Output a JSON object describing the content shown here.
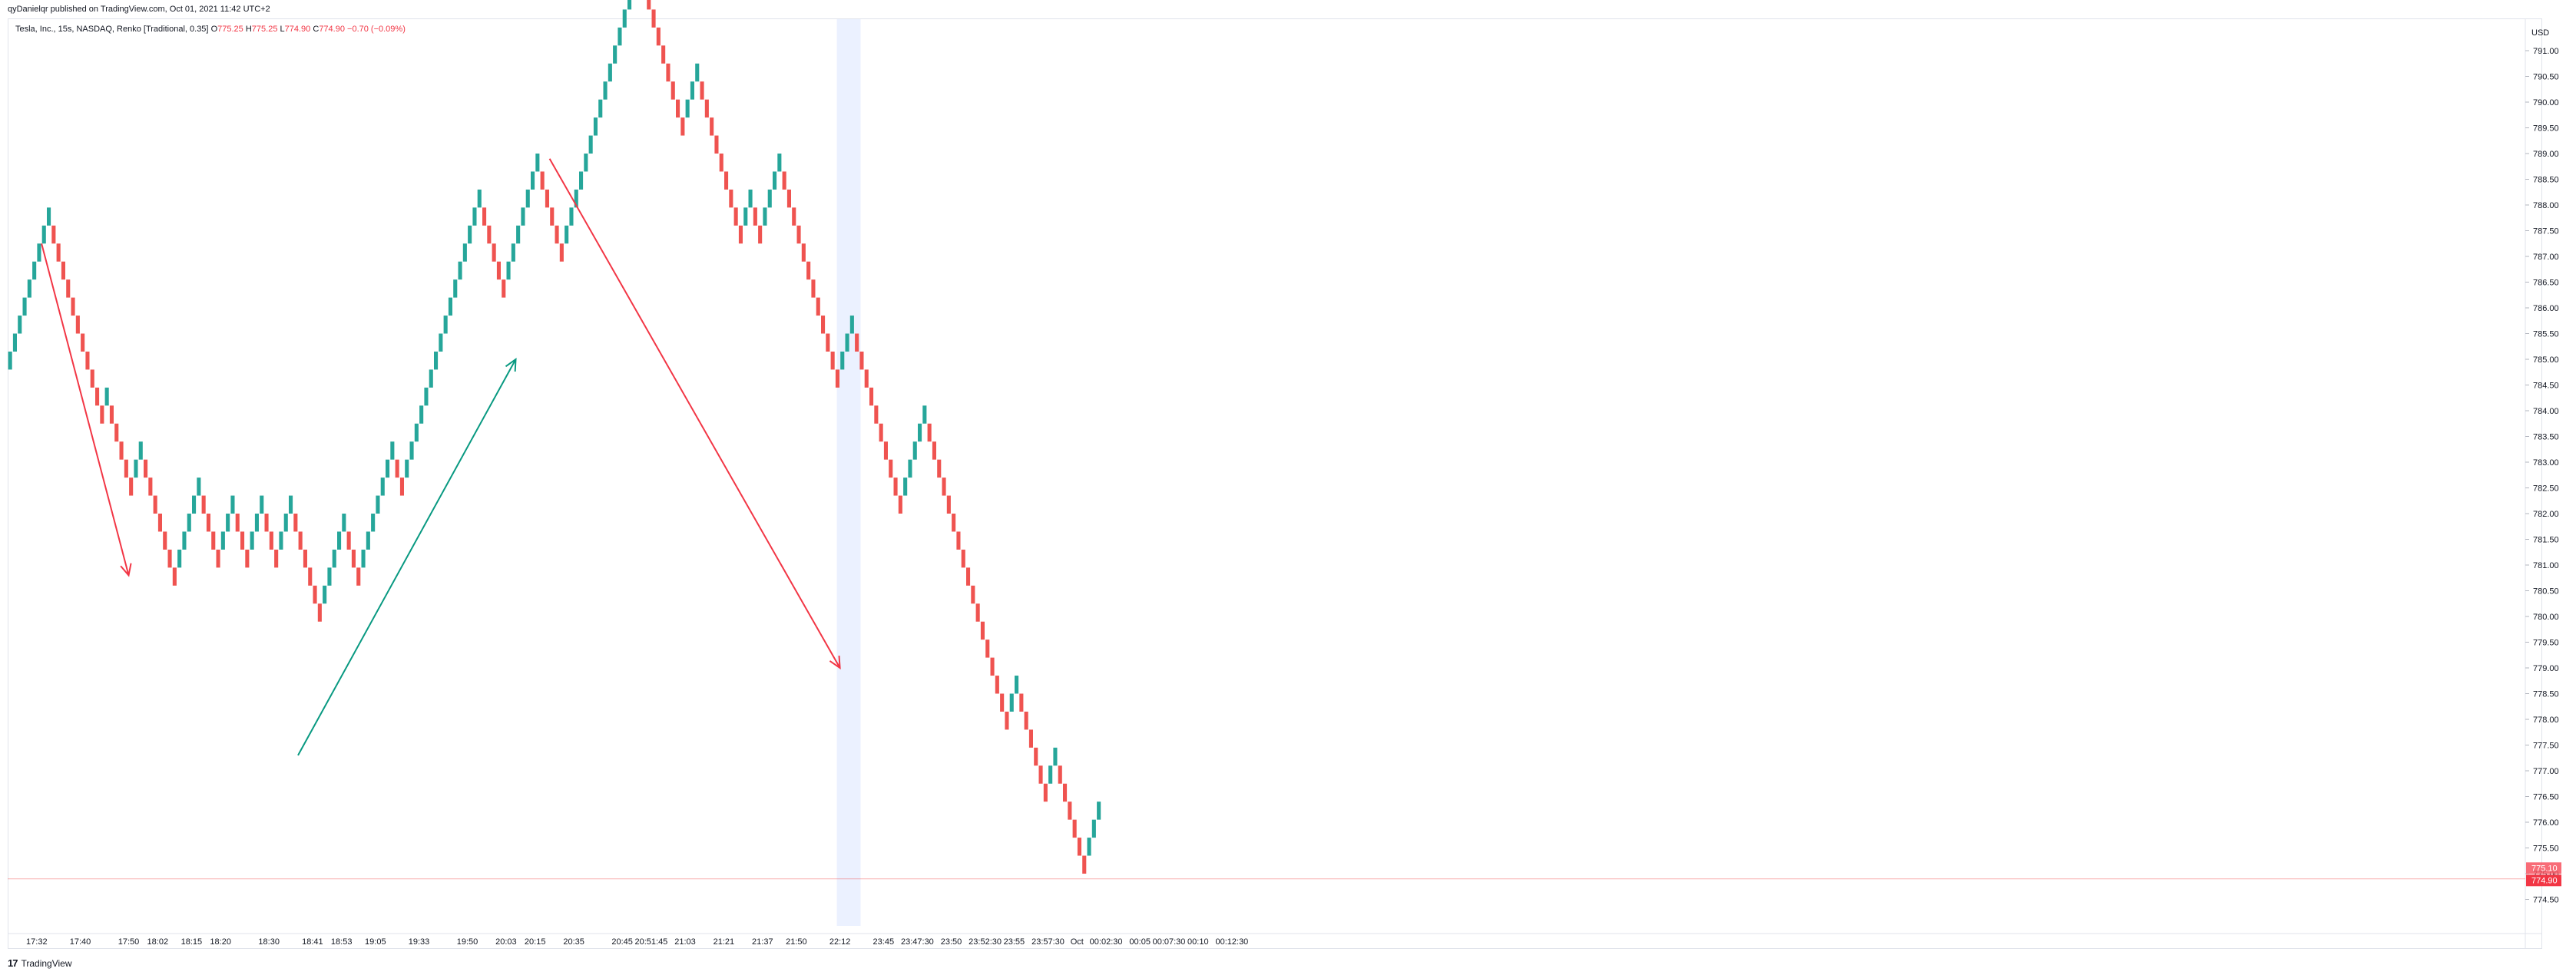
{
  "header": {
    "publisher": "qyDanielqr published on TradingView.com, Oct 01, 2021 11:42 UTC+2"
  },
  "legend": {
    "symbol": "Tesla, Inc., 15s, NASDAQ, Renko [Traditional, 0.35]",
    "open_label": "O",
    "open": "775.25",
    "high_label": "H",
    "high": "775.25",
    "low_label": "L",
    "low": "774.90",
    "close_label": "C",
    "close": "774.90",
    "change": "−0.70 (−0.09%)"
  },
  "footer": {
    "logo_mark": "17",
    "logo_text": "TradingView"
  },
  "colors": {
    "up": "#26a69a",
    "down": "#ef5350",
    "trend_down": "#f23645",
    "trend_up": "#089981",
    "highlight": "#ebf1ff",
    "grid": "#e0e3eb"
  },
  "chart_data": {
    "type": "renko",
    "box_size": 0.35,
    "currency_label": "USD",
    "price_tags": [
      "775.10",
      "774.90"
    ],
    "y_ticks": [
      "791.00",
      "790.50",
      "790.00",
      "789.50",
      "789.00",
      "788.50",
      "788.00",
      "787.50",
      "787.00",
      "786.50",
      "786.00",
      "785.50",
      "785.00",
      "784.50",
      "784.00",
      "783.50",
      "783.00",
      "782.50",
      "782.00",
      "781.50",
      "781.00",
      "780.50",
      "780.00",
      "779.50",
      "779.00",
      "778.50",
      "778.00",
      "777.50",
      "777.00",
      "776.50",
      "776.00",
      "775.50",
      "775.00",
      "774.50"
    ],
    "x_ticks": [
      {
        "label": "17:32",
        "brick": 6
      },
      {
        "label": "17:40",
        "brick": 15
      },
      {
        "label": "17:50",
        "brick": 25
      },
      {
        "label": "18:02",
        "brick": 31
      },
      {
        "label": "18:15",
        "brick": 38
      },
      {
        "label": "18:20",
        "brick": 44
      },
      {
        "label": "18:30",
        "brick": 54
      },
      {
        "label": "18:41",
        "brick": 63
      },
      {
        "label": "18:53",
        "brick": 69
      },
      {
        "label": "19:05",
        "brick": 76
      },
      {
        "label": "19:33",
        "brick": 85
      },
      {
        "label": "19:50",
        "brick": 95
      },
      {
        "label": "20:03",
        "brick": 103
      },
      {
        "label": "20:15",
        "brick": 109
      },
      {
        "label": "20:35",
        "brick": 117
      },
      {
        "label": "20:45",
        "brick": 127
      },
      {
        "label": "20:51:45",
        "brick": 133
      },
      {
        "label": "21:03",
        "brick": 140
      },
      {
        "label": "21:21",
        "brick": 148
      },
      {
        "label": "21:37",
        "brick": 156
      },
      {
        "label": "21:50",
        "brick": 163
      },
      {
        "label": "22:12",
        "brick": 172
      },
      {
        "label": "23:45",
        "brick": 181
      },
      {
        "label": "23:47:30",
        "brick": 188
      },
      {
        "label": "23:50",
        "brick": 195
      },
      {
        "label": "23:52:30",
        "brick": 202
      },
      {
        "label": "23:55",
        "brick": 208
      },
      {
        "label": "23:57:30",
        "brick": 215
      },
      {
        "label": "Oct",
        "brick": 221
      },
      {
        "label": "00:02:30",
        "brick": 227
      },
      {
        "label": "00:05",
        "brick": 234
      },
      {
        "label": "00:07:30",
        "brick": 240
      },
      {
        "label": "00:10",
        "brick": 246
      },
      {
        "label": "00:12:30",
        "brick": 253
      }
    ],
    "start_price": 784.8,
    "directions": "UUUUUUUUUDDDDDDDDDDDUDDDDDUUDDDDDDDUUUUUDDDDUUUDDDUUUDDDUUUDDDDDDUUUUUDDDUUUUUUUDDUUUUUUUUUUUUUUUUDDDDDUUUUUUUDDDDDUUUUUUUUUUUUUUUUDDDDDDDDDUUUDDDDDDDDDUUDDUUUUDDDDDDDDDDDDUUUDDDDDDDDDDUUUUUDDDDDDDDDDDDDDDDDUUDDDDDDUUDDDDDDUUU",
    "highlight_brick_range": [
      172,
      175
    ],
    "trendlines": [
      {
        "color": "down",
        "from": [
          7,
          787.25
        ],
        "to": [
          25,
          780.8
        ]
      },
      {
        "color": "down",
        "from": [
          112,
          788.9
        ],
        "to": [
          172,
          779.0
        ]
      },
      {
        "color": "up",
        "from": [
          60,
          777.3
        ],
        "to": [
          105,
          785.0
        ]
      }
    ],
    "last_price": 774.9
  }
}
